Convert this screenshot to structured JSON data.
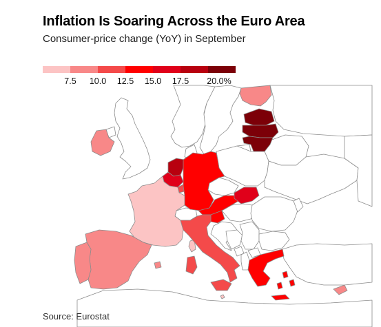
{
  "header": {
    "title": "Inflation Is Soaring Across the Euro Area",
    "subtitle": "Consumer-price change (YoY) in September"
  },
  "footer": {
    "source": "Source: Eurostat"
  },
  "legend": {
    "bins": [
      {
        "color": "#fcc4c4"
      },
      {
        "color": "#f88888"
      },
      {
        "color": "#f44a4a"
      },
      {
        "color": "#ff0000"
      },
      {
        "color": "#e0001a"
      },
      {
        "color": "#b8000f"
      },
      {
        "color": "#7c0008"
      }
    ],
    "tick_labels": [
      "7.5",
      "10.0",
      "12.5",
      "15.0",
      "17.5",
      "20.0%"
    ]
  },
  "colors": {
    "background": "#ffffff",
    "non_euro": "#ffffff",
    "border": "#8c8c8c",
    "coast": "#9a9a9a"
  },
  "map_data": {
    "countries": [
      {
        "name": "Finland",
        "bin": 1
      },
      {
        "name": "Estonia",
        "bin": 6
      },
      {
        "name": "Latvia",
        "bin": 6
      },
      {
        "name": "Lithuania",
        "bin": 6
      },
      {
        "name": "Ireland",
        "bin": 1
      },
      {
        "name": "Netherlands",
        "bin": 5
      },
      {
        "name": "Belgium",
        "bin": 4
      },
      {
        "name": "Luxembourg",
        "bin": 2
      },
      {
        "name": "Germany",
        "bin": 3
      },
      {
        "name": "France",
        "bin": 0
      },
      {
        "name": "Austria",
        "bin": 3
      },
      {
        "name": "Slovakia",
        "bin": 4
      },
      {
        "name": "Slovenia",
        "bin": 3
      },
      {
        "name": "Italy",
        "bin": 2
      },
      {
        "name": "Spain",
        "bin": 1
      },
      {
        "name": "Portugal",
        "bin": 1
      },
      {
        "name": "Greece",
        "bin": 3
      },
      {
        "name": "Cyprus",
        "bin": 1
      },
      {
        "name": "Malta",
        "bin": 0
      }
    ]
  }
}
